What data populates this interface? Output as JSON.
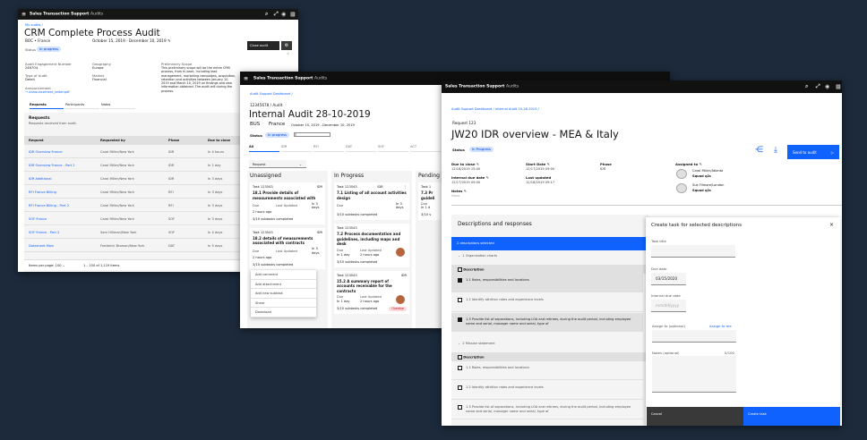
{
  "app": {
    "title_bold": "Sales Transaction Support",
    "title_light": "Audits"
  },
  "colors": {
    "accent": "#0f62fe",
    "header": "#161616",
    "background": "#1c2a3b",
    "badge": "#d0e2ff",
    "overdue": "#ffd7d9"
  },
  "w1": {
    "breadcrumb": "My audits /",
    "title": "CRM Complete Process Audit",
    "org": "BOC • France",
    "dates": "October 15, 2019 - December 10, 2019",
    "status_label": "Status",
    "status": "In progress",
    "close_button": "Close audit",
    "fields": [
      {
        "label": "Audit Engagement Number",
        "value": "2487O4"
      },
      {
        "label": "Geography",
        "value": "Europe"
      },
      {
        "label": "Type of Audit",
        "value": "Detail"
      },
      {
        "label": "Market",
        "value": "Financial"
      }
    ],
    "scope_label": "Preliminary Scope",
    "scope": "This preliminary scope will be the entire CRM process, from hi-back, including lead management, marketing campaigns, acquisition, retention and activities between January 10, 2019 and March 10, 2019 on findings and new information obtained. The audit will during the process.",
    "announcement_label": "Announcement",
    "announcement_file": "Announcement_letter.pdf",
    "tabs": [
      "Requests",
      "Participants",
      "Notes"
    ],
    "panel_title": "Requests",
    "panel_sub": "Requests received from audit.",
    "columns": [
      "Request",
      "Requested by",
      "Phase",
      "Due to close"
    ],
    "rows": [
      [
        "IDR Overview France",
        "Carol Miller/New York",
        "IDR",
        "In 4 hours"
      ],
      [
        "IDR Overview France - Part 2",
        "Carol Miller/New York",
        "IDR",
        "In 1 day"
      ],
      [
        "IDR Additional",
        "Carol Miller/New York",
        "IDR",
        "In 3 days"
      ],
      [
        "RFI France Billing",
        "Carol Miller/New York",
        "RFI",
        "In 3 days"
      ],
      [
        "RFI France Billing - Part 2",
        "Carol Miller/New York",
        "RFI",
        "In 3 days"
      ],
      [
        "SOF France",
        "Carol Miller/New York",
        "SOF",
        "In 3 days"
      ],
      [
        "SOF France - Part 2",
        "Sam Hillman/New York",
        "SOF",
        "In 4 days"
      ],
      [
        "Datasheet Main",
        "Frederick Broman/New York",
        "DAT",
        "In 5 days"
      ]
    ],
    "items_per_page_label": "Items per page:",
    "items_per_page": "100",
    "range": "1 – 100 of 1,119 items"
  },
  "w2": {
    "breadcrumb": "Audit Support Dashboard /",
    "id": "12345678 / Audit",
    "title": "Internal Audit 28-10-2019",
    "org": "BUS",
    "country": "France",
    "dates": "October 15, 2019 - December 10, 2019",
    "status_label": "Status",
    "status": "In progress",
    "progress": 0.05,
    "tabs": [
      "All",
      "IDR",
      "RFI",
      "DAT",
      "SOF",
      "ACT"
    ],
    "filter": "Request",
    "columns": [
      {
        "title": "Unassigned",
        "cards": [
          {
            "task": "Task 123543",
            "phase": "IDR",
            "title": "18.1 Provide details of measurements associated with",
            "due_label": "Due",
            "due": "In 3 days",
            "upd_label": "Last Updated",
            "upd": "2 hours ago",
            "subtasks": "3/10 subtasks completed"
          },
          {
            "task": "Task 123543",
            "phase": "IDR",
            "title": "18.2  details of measurements associated with contracts",
            "due_label": "Due",
            "due": "In 3 days",
            "upd_label": "Last Updated",
            "upd": "2 hours ago",
            "subtasks": "3/10 subtasks completed"
          }
        ]
      },
      {
        "title": "In Progress",
        "cards": [
          {
            "task": "Task 123543",
            "phase": "IDR",
            "title": "7.1 Listing of all account activities design",
            "due_label": "Due",
            "due": "In 3 days",
            "upd_label": "",
            "upd": "",
            "subtasks": "3/10 subtasks completed"
          },
          {
            "task": "Task 123543",
            "phase": "",
            "title": "7.2 Process documentation and guidelines, including maps and desk",
            "due_label": "Due",
            "due": "In 1 day",
            "upd_label": "Last Updated",
            "upd": "2 hours ago",
            "subtasks": "3/10 subtasks completed"
          },
          {
            "task": "Task 123543",
            "phase": "IDR",
            "title": "15.2 A summary report of accounts receivable for the contracts",
            "due_label": "Due",
            "due": "In 1 day",
            "upd_label": "Last Updated",
            "upd": "2 hours ago",
            "subtasks": "3/10 subtasks completed",
            "tag": "Overdue"
          }
        ]
      },
      {
        "title": "Pending",
        "cards": [
          {
            "task": "Task 1",
            "phase": "",
            "title": "7.3 Pr guideli",
            "due_label": "Due",
            "due": "In 1 d",
            "upd_label": "",
            "upd": "",
            "subtasks": "3/10 s"
          }
        ]
      }
    ],
    "menu": [
      "Add comment",
      "Add attachment",
      "Add new subtask",
      "Share",
      "Download"
    ]
  },
  "w3": {
    "breadcrumb": [
      "Audit Support Dashboard",
      "Internal Audit 10-28-2019"
    ],
    "request": "Request 123",
    "title": "JW20 IDR overview - MEA & Italy",
    "status_label": "Status",
    "status": "In Progress",
    "send_button": "Send to audit",
    "fields": [
      {
        "label": "Due to close",
        "value": "12/18/2019 15:00"
      },
      {
        "label": "Internal due date",
        "value": "12/17/2019 09:00"
      },
      {
        "label": "Notes",
        "value": "None"
      },
      {
        "label": "Start Date",
        "value": "12/17/2019 09:00"
      },
      {
        "label": "Last updated",
        "value": "12/18/2019 09:17"
      },
      {
        "label": "Phase",
        "value": "IDR"
      }
    ],
    "assigned_label": "Assigned to",
    "assignees": [
      {
        "name": "Carol Miller/Atlanta",
        "squad": "Squad q2c"
      },
      {
        "name": "Sue Filmore/London",
        "squad": "Squad q2c"
      }
    ],
    "section_title": "Descriptions and responses",
    "selected_bar": "2 descriptions selected",
    "groups": [
      {
        "title": "1 Organization charts",
        "header": "Description",
        "items": [
          {
            "text": "1.1 Roles, responsibilities and locations",
            "checked": true
          },
          {
            "text": "1.2 Identify attrition rates and experience levels",
            "checked": false
          },
          {
            "text": "1.3 Provide list of separations, including LOA and retirees, during the audit period, including employee name and serial, manager name and serial, type of",
            "checked": true
          }
        ]
      },
      {
        "title": "2 Mission statement",
        "header": "Description",
        "items": [
          {
            "text": "1.1 Roles, responsibilities and locations",
            "checked": false
          },
          {
            "text": "1.2 Identify attrition rates and experience levels",
            "checked": false
          },
          {
            "text": "1.3 Provide list of separations, including LOA and retirees, during the audit period, including employee name and serial, manager name and serial, type of",
            "checked": false
          }
        ]
      }
    ],
    "panel": {
      "title": "Create task for selected descriptions",
      "task_title_label": "Task title",
      "task_title": "",
      "due_label": "Due date",
      "due": "03/15/2020",
      "internal_due_label": "Internal due date",
      "internal_due_placeholder": "mm/dd/yyyy",
      "assign_label": "Assign to (optional)",
      "assign_me": "Assign to me",
      "notes_label": "Notes (optional)",
      "notes_count": "0/100",
      "cancel": "Cancel",
      "create": "Create task"
    }
  }
}
